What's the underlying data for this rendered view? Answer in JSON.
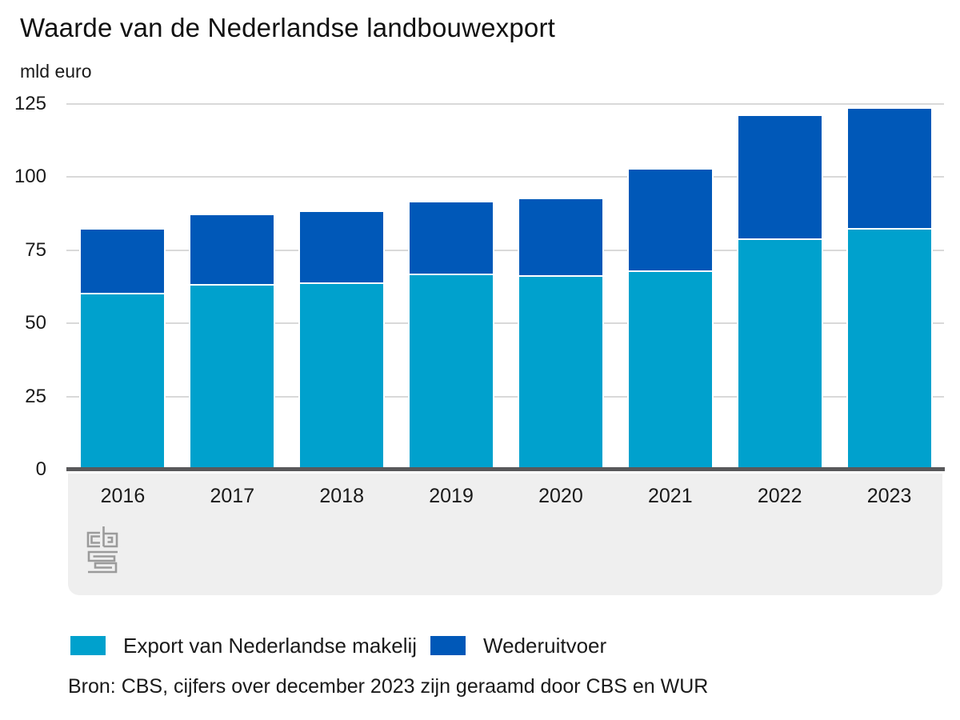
{
  "title": "Waarde van de Nederlandse landbouwexport",
  "subtitle": "mld euro",
  "chart_data": {
    "type": "bar",
    "stacked": true,
    "title": "Waarde van de Nederlandse landbouwexport",
    "ylabel": "mld euro",
    "xlabel": "",
    "categories": [
      "2016",
      "2017",
      "2018",
      "2019",
      "2020",
      "2021",
      "2022",
      "2023"
    ],
    "series": [
      {
        "name": "Export van Nederlandse makelij",
        "color": "#00a1cd",
        "values": [
          60,
          63,
          63.5,
          66.5,
          66,
          67.5,
          78.5,
          82
        ]
      },
      {
        "name": "Wederuitvoer",
        "color": "#0058b8",
        "values": [
          22,
          24,
          24.5,
          25,
          26.5,
          35,
          42.5,
          41.5
        ]
      }
    ],
    "totals": [
      82,
      87,
      88,
      91.5,
      92.5,
      102.5,
      121,
      123.5
    ],
    "ylim": [
      0,
      125
    ],
    "yticks": [
      0,
      25,
      50,
      75,
      100,
      125
    ],
    "grid": true,
    "legend_position": "bottom"
  },
  "colors": {
    "series1": "#00a1cd",
    "series2": "#0058b8",
    "gridline": "#d9d9d9",
    "axis": "#58585a",
    "band": "#efefef",
    "logo": "#9b9b9b"
  },
  "logo_name": "cbs-logo",
  "source": "Bron: CBS, cijfers over december 2023 zijn geraamd door CBS en WUR"
}
